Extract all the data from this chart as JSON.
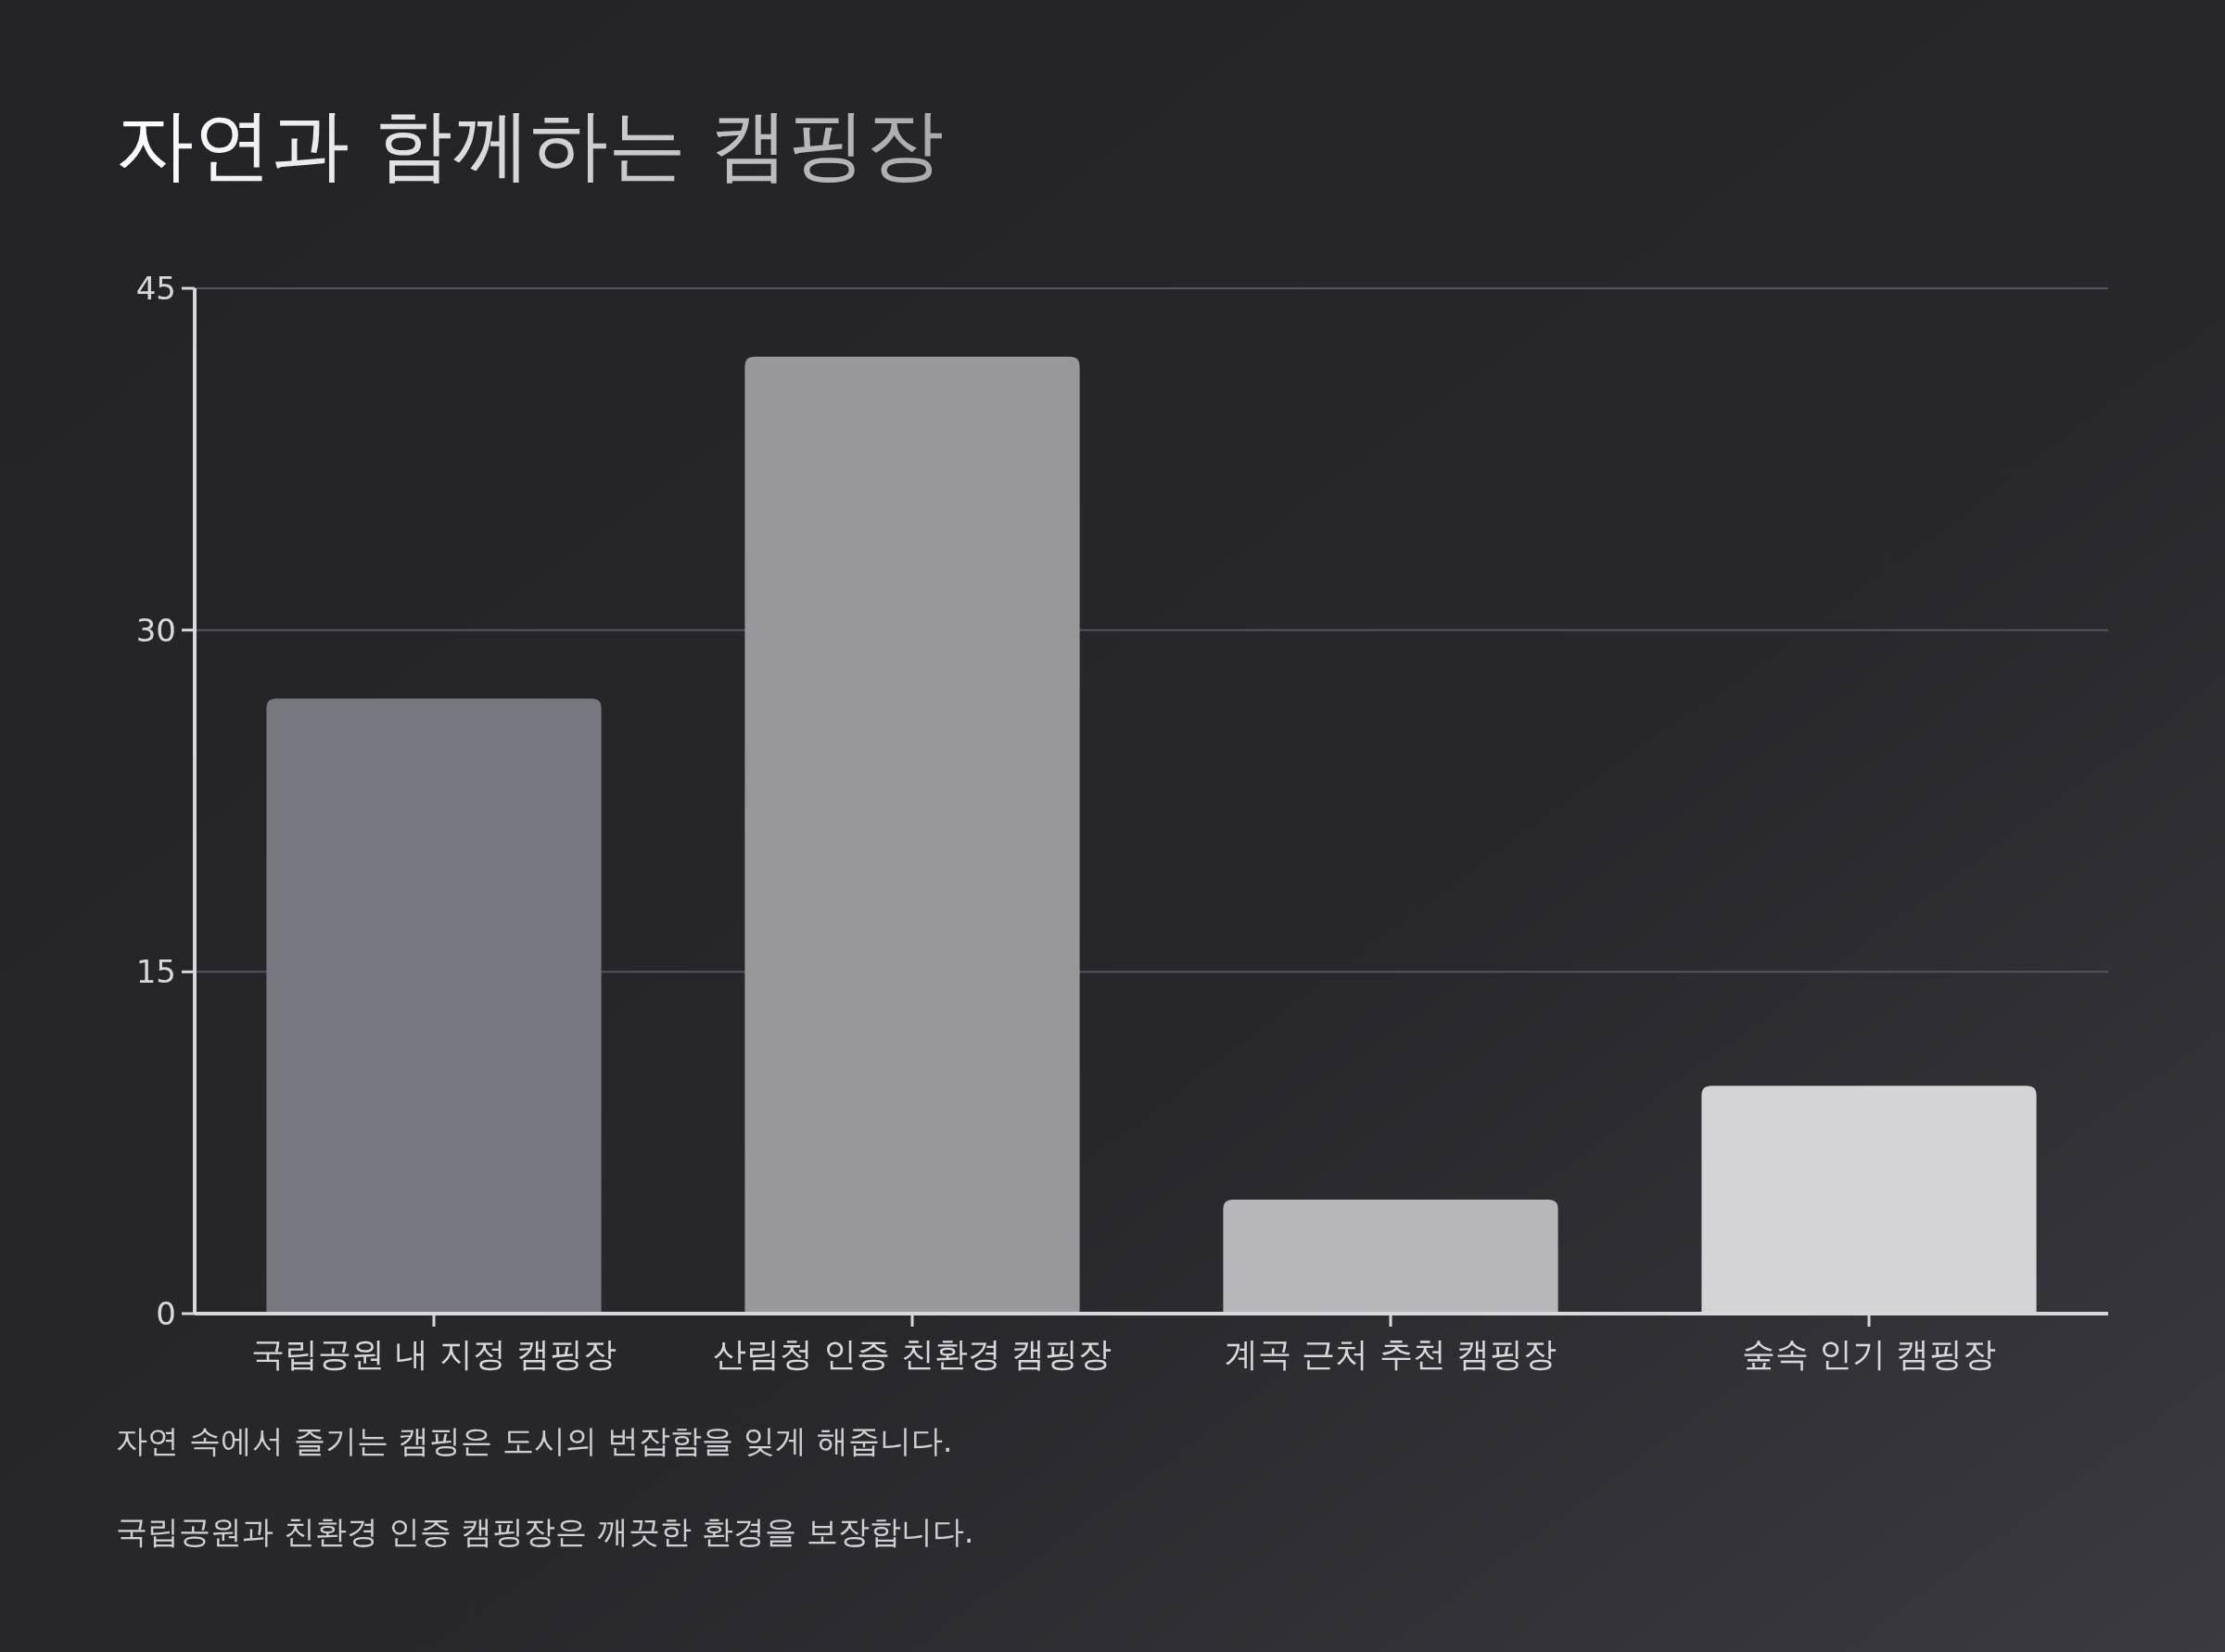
{
  "chart_data": {
    "type": "bar",
    "title": "자연과 함께하는 캠핑장",
    "categories": [
      "국립공원 내 지정 캠핑장",
      "산림청 인증 친환경 캠핑장",
      "계곡 근처 추천 캠핑장",
      "숲속 인기 캠핑장"
    ],
    "values": [
      27,
      42,
      5,
      10
    ],
    "colors": [
      "#77777f",
      "#98989c",
      "#b7b6bb",
      "#d4d4d6"
    ],
    "ylim": [
      0,
      45
    ],
    "yticks": [
      0,
      15,
      30,
      45
    ],
    "grid": "y",
    "annotations": [
      "자연 속에서 즐기는 캠핑은 도시의 번잡함을 잊게 해줍니다.",
      "국립공원과 친환경 인증 캠핑장은 깨끗한 환경을 보장합니다."
    ]
  }
}
